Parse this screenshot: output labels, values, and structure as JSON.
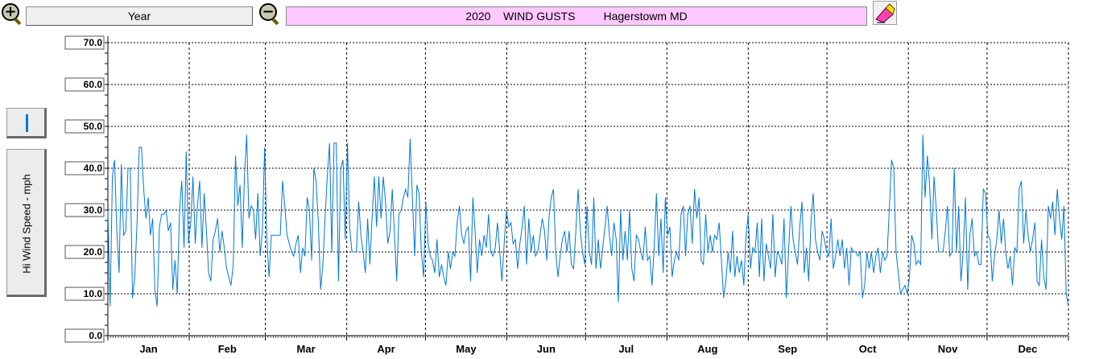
{
  "toolbar": {
    "zoom_in_symbol": "+",
    "zoom_out_symbol": "−",
    "period_label": "Year",
    "title_year": "2020",
    "title_variable": "WIND GUSTS",
    "title_station": "Hagerstowm MD"
  },
  "side_panel": {
    "series_color": "#0078d7",
    "ylabel": "Hi Wind Speed - mph"
  },
  "colors": {
    "title_bg": "#ffc8ff",
    "line": "#0078d7",
    "grid": "#000000"
  },
  "chart_data": {
    "type": "line",
    "title": "2020    WIND GUSTS         Hagerstowm MD",
    "ylabel": "Hi Wind Speed - mph",
    "xlabel": "",
    "ylim": [
      0,
      70
    ],
    "yticks": [
      "0.0",
      "10.0",
      "20.0",
      "30.0",
      "40.0",
      "50.0",
      "60.0",
      "70.0"
    ],
    "months": [
      "Jan",
      "Feb",
      "Mar",
      "Apr",
      "May",
      "Jun",
      "Jul",
      "Aug",
      "Sep",
      "Oct",
      "Nov",
      "Dec"
    ],
    "days_per_month": [
      31,
      29,
      31,
      30,
      31,
      30,
      31,
      31,
      30,
      31,
      30,
      31
    ],
    "grid": true,
    "legend": "none",
    "series": [
      {
        "values": [
          30,
          7,
          38,
          42,
          25,
          15,
          41,
          24,
          25,
          40,
          40,
          9,
          14,
          27,
          45,
          45,
          35,
          28,
          33,
          24,
          28,
          11,
          7,
          26,
          29,
          29,
          30,
          25,
          27,
          11,
          18,
          10,
          30,
          37,
          21,
          44,
          22,
          27,
          38,
          22,
          31,
          37,
          21,
          34,
          25,
          15,
          13,
          23,
          25,
          28,
          20,
          25,
          21,
          16,
          14,
          12,
          17,
          43,
          31,
          36,
          21,
          38,
          48,
          28,
          31,
          30,
          23,
          34,
          19,
          25,
          45,
          23,
          14,
          24,
          24,
          24,
          24,
          24,
          37,
          31,
          24,
          22,
          20,
          19,
          22,
          24,
          15,
          21,
          19,
          33,
          30,
          18,
          40,
          37,
          27,
          11,
          17,
          28,
          38,
          46,
          20,
          46,
          46,
          13,
          40,
          42,
          23,
          46,
          26,
          20,
          20,
          20,
          32,
          24,
          20,
          15,
          28,
          17,
          28,
          38,
          26,
          38,
          28,
          38,
          32,
          22,
          25,
          35,
          24,
          13,
          29,
          30,
          33,
          35,
          33,
          47,
          33,
          19,
          36,
          34,
          20,
          14,
          32,
          22,
          19,
          18,
          15,
          23,
          14,
          17,
          14,
          12,
          20,
          16,
          20,
          19,
          27,
          31,
          24,
          22,
          25,
          26,
          13,
          33,
          25,
          15,
          23,
          19,
          24,
          21,
          29,
          20,
          19,
          21,
          27,
          20,
          13,
          22,
          30,
          26,
          27,
          22,
          23,
          16,
          22,
          26,
          31,
          17,
          28,
          20,
          24,
          19,
          20,
          24,
          28,
          25,
          18,
          28,
          33,
          35,
          20,
          14,
          19,
          23,
          25,
          20,
          25,
          17,
          16,
          25,
          35,
          25,
          20,
          17,
          31,
          20,
          17,
          33,
          16,
          23,
          16,
          21,
          26,
          31,
          24,
          19,
          27,
          23,
          8,
          30,
          18,
          25,
          18,
          30,
          16,
          13,
          24,
          23,
          20,
          18,
          26,
          18,
          19,
          12,
          21,
          34,
          19,
          28,
          15,
          33,
          24,
          26,
          14,
          18,
          20,
          18,
          29,
          31,
          19,
          29,
          31,
          22,
          35,
          28,
          33,
          18,
          17,
          29,
          20,
          24,
          20,
          24,
          23,
          27,
          18,
          9,
          13,
          20,
          15,
          25,
          14,
          19,
          15,
          18,
          12,
          24,
          29,
          16,
          21,
          20,
          27,
          14,
          28,
          13,
          22,
          19,
          16,
          29,
          14,
          20,
          19,
          17,
          28,
          9,
          20,
          31,
          23,
          20,
          17,
          26,
          32,
          15,
          21,
          13,
          27,
          34,
          23,
          20,
          18,
          25,
          23,
          20,
          19,
          28,
          16,
          19,
          23,
          19,
          23,
          16,
          21,
          12,
          21,
          20,
          20,
          19,
          20,
          9,
          12,
          20,
          16,
          20,
          15,
          19,
          21,
          15,
          20,
          18,
          19,
          30,
          42,
          40,
          20,
          15,
          10,
          11,
          12,
          10,
          14,
          24,
          22,
          17,
          18,
          17,
          48,
          33,
          43,
          36,
          23,
          38,
          30,
          20,
          20,
          20,
          25,
          31,
          19,
          20,
          40,
          20,
          31,
          13,
          20,
          33,
          11,
          24,
          28,
          19,
          20,
          17,
          17,
          35,
          34,
          24,
          23,
          13,
          19,
          23,
          30,
          22,
          28,
          20,
          16,
          19,
          12,
          21,
          20,
          35,
          37,
          22,
          30,
          24,
          20,
          23,
          27,
          13,
          12,
          23,
          14,
          11,
          31,
          28,
          32,
          24,
          35,
          28,
          23,
          31,
          10,
          7
        ]
      }
    ]
  }
}
